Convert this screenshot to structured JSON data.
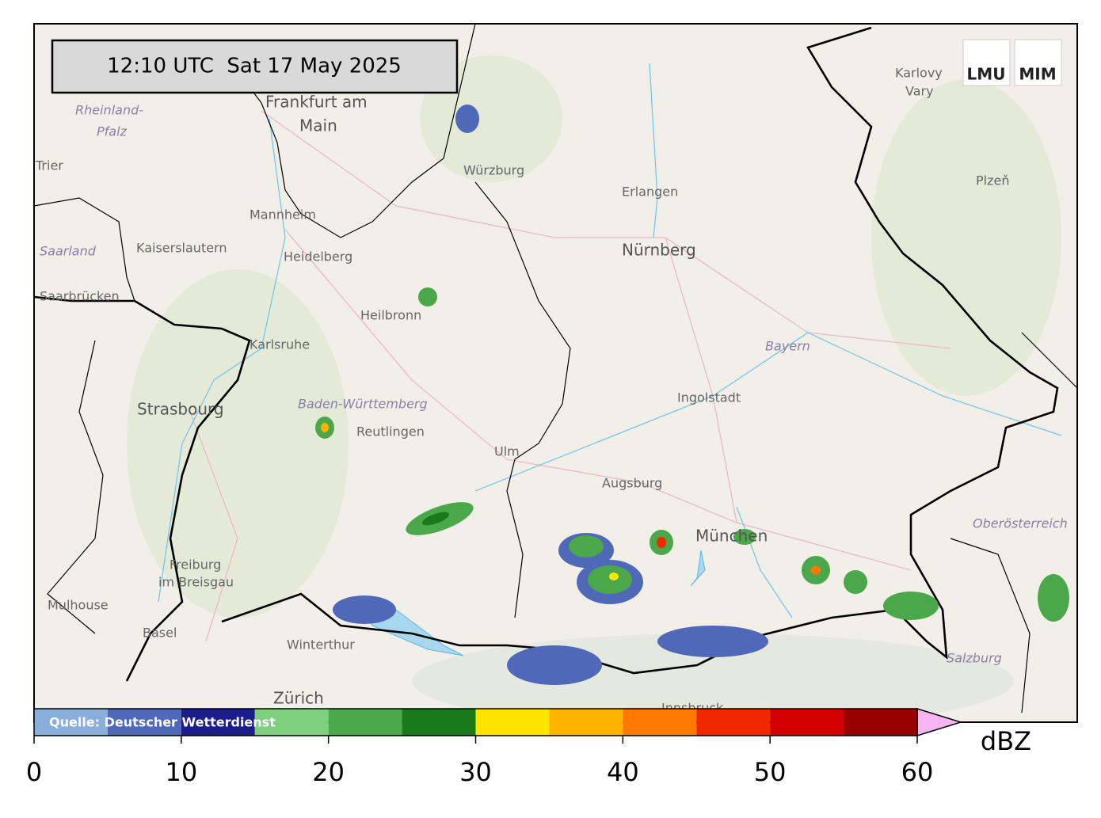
{
  "header": {
    "timestamp": "12:10 UTC  Sat 17 May 2025",
    "logos": [
      "LMU",
      "MIM"
    ]
  },
  "places": [
    "Frankfurt am",
    "Main",
    "Rheinland-",
    "Pfalz",
    "Trier",
    "Mannheim",
    "Kaiserslautern",
    "Heidelberg",
    "Saarland",
    "Saarbrücken",
    "Heilbronn",
    "Karlsruhe",
    "Strasbourg",
    "Baden-Württemberg",
    "Reutlingen",
    "Ulm",
    "Augsburg",
    "München",
    "Freiburg",
    "im Breisgau",
    "Mulhouse",
    "Basel",
    "Winterthur",
    "Zürich",
    "Würzburg",
    "Erlangen",
    "Nürnberg",
    "Bayern",
    "Ingolstadt",
    "Karlovy",
    "Vary",
    "Plzeň",
    "Oberösterreich",
    "Salzburg",
    "Innsbruck"
  ],
  "colorbar": {
    "source": "Quelle: Deutscher Wetterdienst",
    "unit": "dBZ",
    "levels": [
      0,
      5,
      10,
      15,
      20,
      25,
      30,
      35,
      40,
      45,
      50,
      55,
      60
    ],
    "colors": [
      "#8aaedc",
      "#5068b8",
      "#1c1c8c",
      "#7ed07e",
      "#4aa84a",
      "#1a7a1a",
      "#ffe600",
      "#ffb400",
      "#ff7800",
      "#f02800",
      "#d20000",
      "#9a0000"
    ],
    "extend_color": "#f8b4f0",
    "ticks": [
      0,
      10,
      20,
      30,
      40,
      50,
      60
    ]
  }
}
